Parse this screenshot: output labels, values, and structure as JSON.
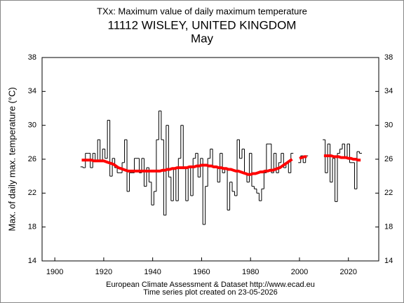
{
  "chart_data": {
    "type": "step",
    "title": "TXx: Maximum value of daily maximum temperature",
    "subtitle": "11112 WISLEY, UNITED KINGDOM",
    "month": "May",
    "y_label": "Max. of daily max. temperature (°C)",
    "footer": [
      "European Climate Assessment & Dataset  http://www.ecad.eu",
      "Time series plot created on 23-05-2026"
    ],
    "xlim": [
      1894.8,
      2032.4
    ],
    "xticks": [
      1900,
      1920,
      1940,
      1960,
      1980,
      2000,
      2020
    ],
    "ylim": [
      14,
      38
    ],
    "yticks": [
      14,
      18,
      22,
      26,
      30,
      34,
      38
    ],
    "x": [
      1911,
      1912,
      1913,
      1914,
      1915,
      1916,
      1917,
      1918,
      1919,
      1920,
      1921,
      1922,
      1923,
      1924,
      1925,
      1926,
      1927,
      1928,
      1929,
      1930,
      1931,
      1932,
      1933,
      1934,
      1935,
      1936,
      1937,
      1938,
      1939,
      1940,
      1941,
      1942,
      1943,
      1944,
      1945,
      1946,
      1947,
      1948,
      1949,
      1950,
      1951,
      1952,
      1953,
      1954,
      1955,
      1956,
      1957,
      1958,
      1959,
      1960,
      1961,
      1962,
      1963,
      1964,
      1965,
      1966,
      1967,
      1968,
      1969,
      1970,
      1971,
      1972,
      1973,
      1974,
      1975,
      1976,
      1977,
      1978,
      1979,
      1980,
      1981,
      1982,
      1983,
      1984,
      1985,
      1986,
      1987,
      1988,
      1989,
      1990,
      1991,
      1992,
      1993,
      1994,
      1995,
      1996,
      1997,
      1998,
      1999,
      2000,
      2001,
      2002,
      2003,
      2004,
      2005,
      2006,
      2007,
      2008,
      2009,
      2010,
      2011,
      2012,
      2013,
      2014,
      2015,
      2016,
      2017,
      2018,
      2019,
      2020,
      2021,
      2022,
      2023,
      2024,
      2025
    ],
    "series": [
      {
        "color": "#000000",
        "values": [
          25.1,
          25.0,
          26.7,
          26.7,
          25.0,
          26.7,
          25.8,
          28.3,
          25.8,
          27.2,
          26.1,
          30.6,
          24.0,
          26.1,
          25.0,
          24.4,
          24.4,
          25.6,
          28.3,
          22.2,
          24.4,
          24.4,
          26.1,
          26.1,
          24.4,
          26.1,
          22.8,
          25.0,
          23.3,
          20.6,
          22.2,
          28.3,
          31.7,
          28.3,
          19.4,
          30.0,
          23.9,
          21.1,
          25.0,
          21.1,
          26.1,
          30.0,
          25.0,
          21.1,
          25.0,
          21.7,
          26.1,
          26.7,
          23.9,
          26.1,
          18.3,
          22.8,
          26.1,
          27.2,
          25.0,
          25.0,
          23.3,
          26.7,
          24.4,
          25.0,
          20.0,
          23.3,
          22.2,
          21.7,
          28.3,
          26.1,
          27.2,
          24.4,
          23.3,
          26.7,
          22.8,
          22.5,
          22.0,
          21.1,
          22.5,
          24.4,
          27.8,
          27.8,
          24.4,
          26.7,
          24.4,
          25.6,
          26.7,
          25.0,
          25.6,
          24.4,
          26.7,
          null,
          null,
          25.6,
          26.4,
          25.6,
          26.4,
          null,
          null,
          null,
          null,
          null,
          null,
          28.3,
          24.4,
          27.8,
          23.3,
          26.1,
          21.0,
          26.7,
          27.2,
          27.8,
          26.1,
          27.8,
          25.6,
          25.6,
          22.5,
          26.9,
          26.7
        ]
      },
      {
        "color": "#ff0000",
        "values": [
          25.9,
          25.9,
          25.9,
          25.9,
          25.9,
          25.8,
          25.8,
          25.8,
          25.8,
          25.8,
          25.7,
          25.6,
          25.5,
          25.4,
          25.2,
          25.0,
          24.9,
          24.8,
          24.7,
          24.6,
          24.6,
          24.6,
          24.6,
          24.6,
          24.6,
          24.6,
          24.6,
          24.6,
          24.6,
          24.6,
          24.6,
          24.6,
          24.6,
          24.7,
          24.7,
          24.8,
          24.8,
          24.9,
          24.9,
          25.0,
          25.0,
          25.0,
          25.0,
          25.0,
          25.1,
          25.1,
          25.1,
          25.2,
          25.2,
          25.3,
          25.3,
          25.3,
          25.2,
          25.2,
          25.1,
          25.1,
          25.0,
          25.0,
          24.9,
          24.9,
          24.8,
          24.8,
          24.7,
          24.6,
          24.6,
          24.5,
          24.4,
          24.3,
          24.2,
          24.2,
          24.3,
          24.3,
          24.4,
          24.5,
          24.5,
          24.6,
          24.6,
          24.7,
          24.7,
          24.8,
          24.9,
          25.0,
          25.2,
          25.4,
          25.6,
          25.8,
          26.0,
          null,
          null,
          26.1,
          26.2,
          26.3,
          26.3,
          null,
          null,
          null,
          null,
          null,
          null,
          26.4,
          26.4,
          26.4,
          26.4,
          26.3,
          26.3,
          26.3,
          26.2,
          26.2,
          26.2,
          26.1,
          26.1,
          26.0,
          26.0,
          25.9,
          25.9
        ]
      }
    ]
  }
}
